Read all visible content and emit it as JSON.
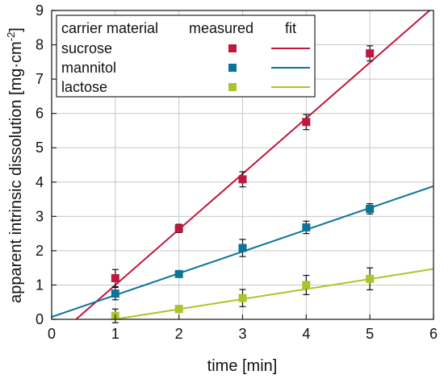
{
  "chart_data": {
    "type": "scatter",
    "xlabel": "time [min]",
    "ylabel": "apparent intrinsic dissolution [mg·cm",
    "ylabel_superscript": "-2",
    "ylabel_suffix": "]",
    "xlim": [
      0,
      6
    ],
    "ylim": [
      0,
      9
    ],
    "x_ticks": [
      "0",
      "1",
      "2",
      "3",
      "4",
      "5",
      "6"
    ],
    "y_ticks": [
      "0",
      "1",
      "2",
      "3",
      "4",
      "5",
      "6",
      "7",
      "8",
      "9"
    ],
    "grid": true,
    "legend": {
      "placement": "top-left",
      "header_material": "carrier material",
      "header_measured": "measured",
      "header_fit": "fit"
    },
    "series": [
      {
        "name": "sucrose",
        "color": "#c0173c",
        "x": [
          1,
          2,
          3,
          4,
          5
        ],
        "y": [
          1.2,
          2.65,
          4.08,
          5.75,
          7.75
        ],
        "err": [
          0.25,
          0.12,
          0.22,
          0.22,
          0.22
        ],
        "fit": {
          "slope": 1.62,
          "intercept": -0.62
        }
      },
      {
        "name": "mannitol",
        "color": "#0d7499",
        "x": [
          1,
          2,
          3,
          4,
          5
        ],
        "y": [
          0.75,
          1.32,
          2.08,
          2.68,
          3.22
        ],
        "err": [
          0.18,
          0.08,
          0.25,
          0.18,
          0.15
        ],
        "fit": {
          "slope": 0.635,
          "intercept": 0.07
        }
      },
      {
        "name": "lactose",
        "color": "#a8c62a",
        "x": [
          1,
          2,
          3,
          4,
          5
        ],
        "y": [
          0.1,
          0.3,
          0.62,
          1.0,
          1.18
        ],
        "err": [
          0.2,
          0.1,
          0.25,
          0.28,
          0.32
        ],
        "fit": {
          "slope": 0.293,
          "intercept": -0.29
        }
      }
    ]
  }
}
